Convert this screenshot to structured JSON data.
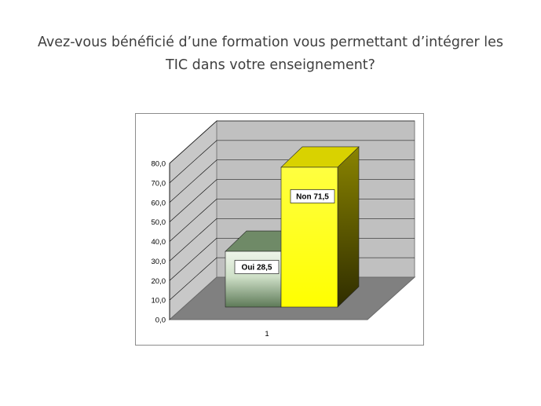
{
  "slide": {
    "title_line1": "Avez-vous bénéficié d’une formation vous permettant d’intégrer les",
    "title_line2": "TIC dans votre enseignement?"
  },
  "chart_data": {
    "type": "bar",
    "style": "3d-clustered-column",
    "categories": [
      "1"
    ],
    "series": [
      {
        "name": "Oui",
        "values": [
          28.5
        ],
        "color": "#a9c7a0",
        "data_label": "Oui 28,5"
      },
      {
        "name": "Non",
        "values": [
          71.5
        ],
        "color": "#ffff00",
        "data_label": "Non 71,5"
      }
    ],
    "ylim": [
      0,
      80
    ],
    "ytick_labels": [
      "0,0",
      "10,0",
      "20,0",
      "30,0",
      "40,0",
      "50,0",
      "60,0",
      "70,0",
      "80,0"
    ],
    "grid": true,
    "legend": "none",
    "colors": {
      "back_wall": "#c0c0c0",
      "floor": "#808080"
    }
  }
}
